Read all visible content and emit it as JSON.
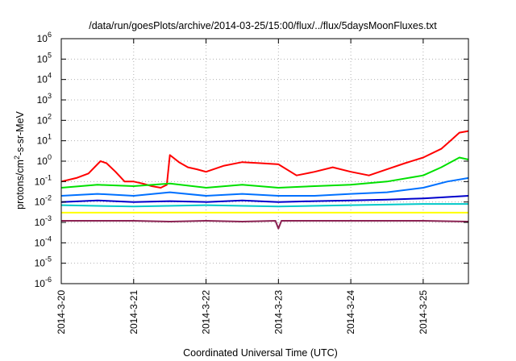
{
  "chart_data": {
    "type": "line",
    "title": "/data/run/goesPlots/archive/2014-03-25/15:00/flux/../flux/5daysMoonFluxes.txt",
    "xlabel": "Coordinated Universal Time (UTC)",
    "ylabel_parts": {
      "pre": "protons/cm",
      "sup": "2",
      "post": "-s-sr-MeV"
    },
    "y_scale": "log",
    "ylim": [
      1e-06,
      1000000.0
    ],
    "xlim": [
      "2014-03-20 00:00",
      "2014-03-25 15:00"
    ],
    "y_ticks": [
      {
        "value": 1e-06,
        "base": "10",
        "exp": "-6"
      },
      {
        "value": 1e-05,
        "base": "10",
        "exp": "-5"
      },
      {
        "value": 0.0001,
        "base": "10",
        "exp": "-4"
      },
      {
        "value": 0.001,
        "base": "10",
        "exp": "-3"
      },
      {
        "value": 0.01,
        "base": "10",
        "exp": "-2"
      },
      {
        "value": 0.1,
        "base": "10",
        "exp": "-1"
      },
      {
        "value": 1.0,
        "base": "10",
        "exp": "0"
      },
      {
        "value": 10.0,
        "base": "10",
        "exp": "1"
      },
      {
        "value": 100.0,
        "base": "10",
        "exp": "2"
      },
      {
        "value": 1000.0,
        "base": "10",
        "exp": "3"
      },
      {
        "value": 10000.0,
        "base": "10",
        "exp": "4"
      },
      {
        "value": 100000.0,
        "base": "10",
        "exp": "5"
      },
      {
        "value": 1000000.0,
        "base": "10",
        "exp": "6"
      }
    ],
    "x_ticks": [
      {
        "value": "2014-03-20 00:00",
        "label": "2014-3-20"
      },
      {
        "value": "2014-03-21 00:00",
        "label": "2014-3-21"
      },
      {
        "value": "2014-03-22 00:00",
        "label": "2014-3-22"
      },
      {
        "value": "2014-03-23 00:00",
        "label": "2014-3-23"
      },
      {
        "value": "2014-03-24 00:00",
        "label": "2014-3-24"
      },
      {
        "value": "2014-03-25 00:00",
        "label": "2014-3-25"
      }
    ],
    "grid": true,
    "legend": "none",
    "series": [
      {
        "color": "#ff0000",
        "x": [
          "2014-03-20 00:00",
          "2014-03-20 05:00",
          "2014-03-20 09:00",
          "2014-03-20 13:00",
          "2014-03-20 15:00",
          "2014-03-20 18:00",
          "2014-03-20 21:00",
          "2014-03-21 00:00",
          "2014-03-21 03:00",
          "2014-03-21 06:00",
          "2014-03-21 09:00",
          "2014-03-21 11:00",
          "2014-03-21 12:00",
          "2014-03-21 15:00",
          "2014-03-21 18:00",
          "2014-03-21 21:00",
          "2014-03-22 00:00",
          "2014-03-22 06:00",
          "2014-03-22 12:00",
          "2014-03-22 18:00",
          "2014-03-23 00:00",
          "2014-03-23 06:00",
          "2014-03-23 12:00",
          "2014-03-23 18:00",
          "2014-03-24 00:00",
          "2014-03-24 06:00",
          "2014-03-24 12:00",
          "2014-03-24 18:00",
          "2014-03-25 00:00",
          "2014-03-25 06:00",
          "2014-03-25 09:00",
          "2014-03-25 12:00",
          "2014-03-25 15:00"
        ],
        "y": [
          0.1,
          0.15,
          0.25,
          1.0,
          0.8,
          0.3,
          0.1,
          0.1,
          0.08,
          0.06,
          0.05,
          0.07,
          2.0,
          0.9,
          0.5,
          0.4,
          0.3,
          0.6,
          0.9,
          0.8,
          0.7,
          0.2,
          0.3,
          0.5,
          0.3,
          0.2,
          0.4,
          0.8,
          1.5,
          4.0,
          10,
          25,
          30
        ]
      },
      {
        "color": "#00e000",
        "x": [
          "2014-03-20 00:00",
          "2014-03-20 12:00",
          "2014-03-21 00:00",
          "2014-03-21 12:00",
          "2014-03-22 00:00",
          "2014-03-22 12:00",
          "2014-03-23 00:00",
          "2014-03-23 12:00",
          "2014-03-24 00:00",
          "2014-03-24 12:00",
          "2014-03-25 00:00",
          "2014-03-25 06:00",
          "2014-03-25 12:00",
          "2014-03-25 15:00"
        ],
        "y": [
          0.05,
          0.07,
          0.06,
          0.08,
          0.05,
          0.07,
          0.05,
          0.06,
          0.07,
          0.1,
          0.2,
          0.5,
          1.5,
          1.2
        ]
      },
      {
        "color": "#0070ff",
        "x": [
          "2014-03-20 00:00",
          "2014-03-20 12:00",
          "2014-03-21 00:00",
          "2014-03-21 12:00",
          "2014-03-22 00:00",
          "2014-03-22 12:00",
          "2014-03-23 00:00",
          "2014-03-23 12:00",
          "2014-03-24 00:00",
          "2014-03-24 12:00",
          "2014-03-25 00:00",
          "2014-03-25 08:00",
          "2014-03-25 15:00"
        ],
        "y": [
          0.02,
          0.025,
          0.02,
          0.03,
          0.02,
          0.025,
          0.02,
          0.02,
          0.025,
          0.03,
          0.05,
          0.1,
          0.15
        ]
      },
      {
        "color": "#0000cc",
        "x": [
          "2014-03-20 00:00",
          "2014-03-20 12:00",
          "2014-03-21 00:00",
          "2014-03-21 12:00",
          "2014-03-22 00:00",
          "2014-03-22 12:00",
          "2014-03-23 00:00",
          "2014-03-23 12:00",
          "2014-03-24 00:00",
          "2014-03-24 12:00",
          "2014-03-25 00:00",
          "2014-03-25 15:00"
        ],
        "y": [
          0.01,
          0.012,
          0.01,
          0.011,
          0.01,
          0.012,
          0.01,
          0.011,
          0.012,
          0.013,
          0.015,
          0.02
        ]
      },
      {
        "color": "#00c8c8",
        "x": [
          "2014-03-20 00:00",
          "2014-03-21 00:00",
          "2014-03-22 00:00",
          "2014-03-23 00:00",
          "2014-03-24 00:00",
          "2014-03-25 00:00",
          "2014-03-25 15:00"
        ],
        "y": [
          0.007,
          0.006,
          0.007,
          0.006,
          0.007,
          0.008,
          0.008
        ]
      },
      {
        "color": "#ffff00",
        "x": [
          "2014-03-20 00:00",
          "2014-03-21 00:00",
          "2014-03-22 00:00",
          "2014-03-23 00:00",
          "2014-03-24 00:00",
          "2014-03-25 00:00",
          "2014-03-25 15:00"
        ],
        "y": [
          0.003,
          0.003,
          0.003,
          0.003,
          0.003,
          0.003,
          0.003
        ]
      },
      {
        "color": "#8b2252",
        "x": [
          "2014-03-20 00:00",
          "2014-03-21 00:00",
          "2014-03-21 12:00",
          "2014-03-22 00:00",
          "2014-03-22 12:00",
          "2014-03-22 23:00",
          "2014-03-23 00:00",
          "2014-03-23 01:00",
          "2014-03-24 00:00",
          "2014-03-25 00:00",
          "2014-03-25 15:00"
        ],
        "y": [
          0.0012,
          0.0012,
          0.0011,
          0.0012,
          0.0011,
          0.0012,
          0.0005,
          0.0012,
          0.0012,
          0.0012,
          0.0011
        ]
      }
    ]
  }
}
